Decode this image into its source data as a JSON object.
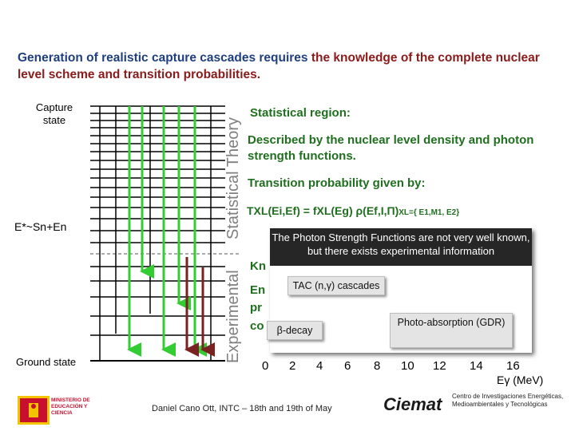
{
  "title": {
    "part1": "Generation of realistic capture cascades requires ",
    "part2": "the knowledge of the complete nuclear level scheme and transition probabilities."
  },
  "diagram": {
    "capture_state_label": "Capture state",
    "excitation_label": "E*~Sn+En",
    "ground_state_label": "Ground state",
    "statistical_theory_label": "Statistical Theory",
    "experimental_label": "Experimental"
  },
  "statistical": {
    "heading": "Statistical region:",
    "description": "Described by the nuclear level density and photon strength functions.",
    "transition_label": "Transition probability given by:",
    "formula_main": "TXL(Ei,Ef) = fXL(Eg) ρ(Ef,I,Π)",
    "formula_sub": "XL={ E1,M1, E2}"
  },
  "hidden_text": {
    "line1_start": "Kn",
    "line2_start": "En",
    "line3_start": "pr",
    "line4_start": "co"
  },
  "popup": {
    "head_text": "The Photon Strength Functions are not very well known, but there exists experimental information",
    "tac_label": "TAC (n,γ) cascades",
    "beta_label": "β-decay",
    "photo_label": "Photo-absorption (GDR)",
    "x_ticks": [
      "0",
      "2",
      "4",
      "6",
      "8",
      "10",
      "12",
      "14",
      "16"
    ],
    "x_unit": "Eγ (MeV)"
  },
  "footer": {
    "ministry": "MINISTERIO DE EDUCACIÓN Y CIENCIA",
    "presenter": "Daniel Cano Ott, INTC – 18th and 19th of May",
    "ciemat": "Ciemat",
    "ciemat_sub": "Centro de Investigaciones Energéticas, Medioambientales y Tecnológicas"
  },
  "colors": {
    "title_blue": "#1f3f7f",
    "title_red": "#8b1a1a",
    "green": "#1f6f1f",
    "arrow_green": "#33cc33",
    "arrow_dark": "#7a2222"
  }
}
